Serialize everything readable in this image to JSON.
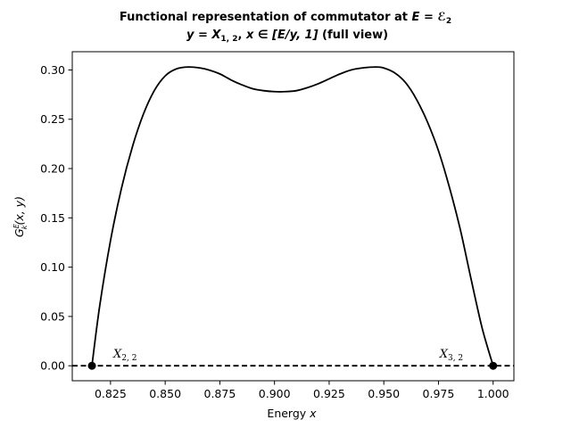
{
  "chart_data": {
    "type": "line",
    "title_line1_prefix": "Functional representation of commutator at ",
    "title_line1_math": "E = ℰ",
    "title_line1_sub": "2",
    "title_line2_y": "y = X",
    "title_line2_ysub": "1, 2",
    "title_line2_sep": ", ",
    "title_line2_x": "x ∈ [E/y, 1]",
    "title_line2_suffix": " (full view)",
    "xlabel_text": "Energy ",
    "xlabel_var": "x",
    "ylabel": "G",
    "ylabel_sup": "E",
    "ylabel_sub": "k",
    "ylabel_args": "(x, y)",
    "xlim": [
      0.8075,
      1.0095
    ],
    "ylim": [
      -0.0152,
      0.3185
    ],
    "x_ticks": [
      0.825,
      0.85,
      0.875,
      0.9,
      0.925,
      0.95,
      0.975,
      1.0
    ],
    "x_tick_labels": [
      "0.825",
      "0.850",
      "0.875",
      "0.900",
      "0.925",
      "0.950",
      "0.975",
      "1.000"
    ],
    "y_ticks": [
      0.0,
      0.05,
      0.1,
      0.15,
      0.2,
      0.25,
      0.3
    ],
    "y_tick_labels": [
      "0.00",
      "0.05",
      "0.10",
      "0.15",
      "0.20",
      "0.25",
      "0.30"
    ],
    "grid": false,
    "series": [
      {
        "color": "#000000",
        "x": [
          0.8165,
          0.82,
          0.825,
          0.83,
          0.835,
          0.84,
          0.845,
          0.85,
          0.855,
          0.8605,
          0.866,
          0.87,
          0.875,
          0.88,
          0.885,
          0.89,
          0.895,
          0.9,
          0.905,
          0.91,
          0.915,
          0.92,
          0.925,
          0.93,
          0.935,
          0.94,
          0.9465,
          0.95,
          0.955,
          0.96,
          0.965,
          0.97,
          0.975,
          0.98,
          0.985,
          0.99,
          0.995,
          1.0
        ],
        "y": [
          0.0,
          0.06,
          0.127,
          0.18,
          0.222,
          0.255,
          0.279,
          0.294,
          0.301,
          0.303,
          0.302,
          0.3,
          0.296,
          0.29,
          0.285,
          0.281,
          0.279,
          0.278,
          0.278,
          0.279,
          0.282,
          0.286,
          0.291,
          0.296,
          0.3,
          0.302,
          0.303,
          0.302,
          0.297,
          0.287,
          0.27,
          0.247,
          0.218,
          0.181,
          0.138,
          0.087,
          0.038,
          0.0
        ]
      }
    ],
    "baseline": {
      "y": 0.0,
      "style": "dashed",
      "color": "#000000"
    },
    "points": [
      {
        "x": 0.8165,
        "y": 0.0,
        "label": "X",
        "label_sub": "2, 2"
      },
      {
        "x": 1.0,
        "y": 0.0,
        "label": "X",
        "label_sub": "3, 2"
      }
    ]
  }
}
